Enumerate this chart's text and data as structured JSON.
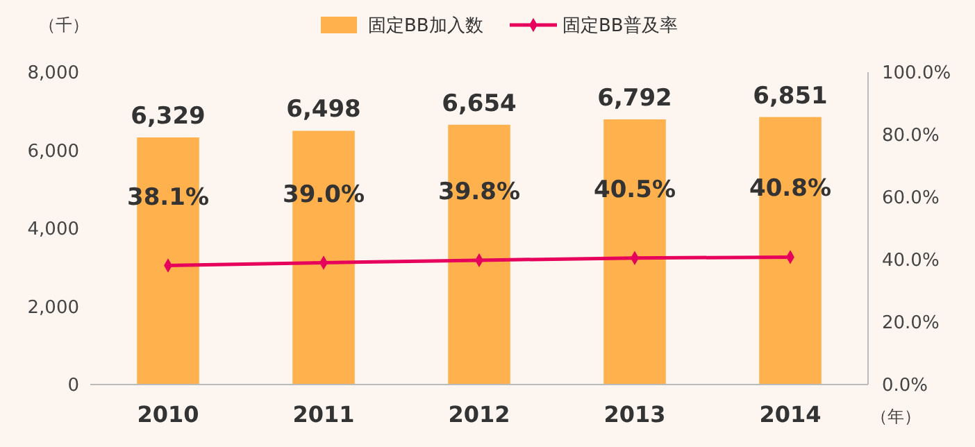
{
  "chart_data": {
    "type": "bar",
    "categories": [
      "2010",
      "2011",
      "2012",
      "2013",
      "2014"
    ],
    "series": [
      {
        "name": "固定BB加入数",
        "color": "#ffb14e",
        "values": [
          6329,
          6498,
          6654,
          6792,
          6851
        ],
        "value_labels": [
          "6,329",
          "6,498",
          "6,654",
          "6,792",
          "6,851"
        ]
      },
      {
        "name": "固定BB普及率",
        "type": "line",
        "axis": "y2",
        "color": "#e6005c",
        "marker": "diamond",
        "values": [
          38.1,
          39.0,
          39.8,
          40.5,
          40.8
        ],
        "value_labels": [
          "38.1%",
          "39.0%",
          "39.8%",
          "40.5%",
          "40.8%"
        ]
      }
    ],
    "ylabel": "（千）",
    "xlabel": "（年）",
    "ylim": [
      0,
      8000
    ],
    "yticks": [
      0,
      {
        "value": 2000,
        "label": "2,000"
      },
      {
        "value": 4000,
        "label": "4,000"
      },
      {
        "value": 6000,
        "label": "6,000"
      },
      {
        "value": 8000,
        "label": "8,000"
      }
    ],
    "y2lim": [
      0,
      100
    ],
    "y2ticks": [
      {
        "value": 0,
        "label": "0.0%"
      },
      {
        "value": 20,
        "label": "20.0%"
      },
      {
        "value": 40,
        "label": "40.0%"
      },
      {
        "value": 60,
        "label": "60.0%"
      },
      {
        "value": 80,
        "label": "80.0%"
      },
      {
        "value": 100,
        "label": "100.0%"
      }
    ],
    "legend": "top",
    "grid": false
  }
}
